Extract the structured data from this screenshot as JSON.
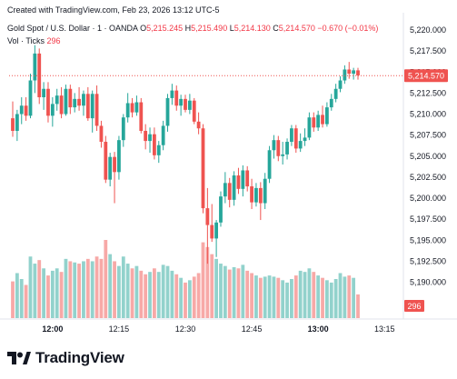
{
  "header": {
    "created": "Created with TradingView.com, Feb 23, 2026 13:12 UTC-5",
    "symbol": "Gold Spot / U.S. Dollar · 1 · OANDA",
    "o_label": "O",
    "o_value": "5,215.245",
    "h_label": "H",
    "h_value": "5,215.490",
    "l_label": "L",
    "l_value": "5,214.130",
    "c_label": "C",
    "c_value": "5,214.570",
    "change": "−0.670 (−0.01%)",
    "vol_label": "Vol · Ticks",
    "vol_value": "296"
  },
  "footer": {
    "logo_text": "TradingView"
  },
  "colors": {
    "up": "#26a69a",
    "down": "#ef5350",
    "vol_up": "#92d2cc",
    "vol_down": "#f7a9a7",
    "price_line": "#ef5350"
  },
  "chart_data": {
    "type": "candlestick",
    "y_ticks": [
      "5,220.000",
      "5,217.500",
      "5,215.000",
      "5,212.500",
      "5,210.000",
      "5,207.500",
      "5,205.000",
      "5,202.500",
      "5,200.000",
      "5,197.500",
      "5,195.000",
      "5,192.500",
      "5,190.000"
    ],
    "x_ticks": [
      {
        "label": "12:00",
        "index": 9,
        "bold": true
      },
      {
        "label": "12:15",
        "index": 24,
        "bold": false
      },
      {
        "label": "12:30",
        "index": 39,
        "bold": false
      },
      {
        "label": "12:45",
        "index": 54,
        "bold": false
      },
      {
        "label": "13:00",
        "index": 69,
        "bold": true
      },
      {
        "label": "13:15",
        "index": 84,
        "bold": false
      }
    ],
    "y_range": [
      5188.0,
      5222.0
    ],
    "last_price": "5,214.570",
    "last_price_value": 5214.57,
    "last_volume": "296",
    "candles": [
      {
        "o": 5209.5,
        "h": 5211.5,
        "l": 5207.3,
        "c": 5208.0,
        "v": 155
      },
      {
        "o": 5208.0,
        "h": 5210.5,
        "l": 5206.8,
        "c": 5210.0,
        "v": 190
      },
      {
        "o": 5210.0,
        "h": 5212.0,
        "l": 5208.8,
        "c": 5211.0,
        "v": 165
      },
      {
        "o": 5211.0,
        "h": 5212.0,
        "l": 5209.2,
        "c": 5209.8,
        "v": 140
      },
      {
        "o": 5209.8,
        "h": 5214.8,
        "l": 5209.5,
        "c": 5214.0,
        "v": 260
      },
      {
        "o": 5214.0,
        "h": 5218.2,
        "l": 5212.5,
        "c": 5217.2,
        "v": 230
      },
      {
        "o": 5217.2,
        "h": 5217.8,
        "l": 5211.2,
        "c": 5212.0,
        "v": 245
      },
      {
        "o": 5212.0,
        "h": 5213.8,
        "l": 5210.5,
        "c": 5213.0,
        "v": 210
      },
      {
        "o": 5213.0,
        "h": 5213.8,
        "l": 5209.0,
        "c": 5209.8,
        "v": 180
      },
      {
        "o": 5209.8,
        "h": 5212.0,
        "l": 5208.5,
        "c": 5211.2,
        "v": 200
      },
      {
        "o": 5211.2,
        "h": 5213.0,
        "l": 5210.4,
        "c": 5212.2,
        "v": 210
      },
      {
        "o": 5212.2,
        "h": 5213.2,
        "l": 5209.5,
        "c": 5210.0,
        "v": 195
      },
      {
        "o": 5210.0,
        "h": 5213.5,
        "l": 5209.8,
        "c": 5213.0,
        "v": 250
      },
      {
        "o": 5213.0,
        "h": 5213.5,
        "l": 5210.0,
        "c": 5210.8,
        "v": 240
      },
      {
        "o": 5210.8,
        "h": 5212.5,
        "l": 5210.2,
        "c": 5211.8,
        "v": 235
      },
      {
        "o": 5211.8,
        "h": 5213.2,
        "l": 5210.4,
        "c": 5211.0,
        "v": 230
      },
      {
        "o": 5211.0,
        "h": 5212.8,
        "l": 5209.8,
        "c": 5212.4,
        "v": 240
      },
      {
        "o": 5212.4,
        "h": 5213.2,
        "l": 5209.2,
        "c": 5209.5,
        "v": 250
      },
      {
        "o": 5209.5,
        "h": 5212.8,
        "l": 5207.8,
        "c": 5212.4,
        "v": 240
      },
      {
        "o": 5212.4,
        "h": 5213.4,
        "l": 5208.0,
        "c": 5208.6,
        "v": 260
      },
      {
        "o": 5208.6,
        "h": 5209.2,
        "l": 5206.0,
        "c": 5206.7,
        "v": 250
      },
      {
        "o": 5206.7,
        "h": 5207.4,
        "l": 5201.8,
        "c": 5202.2,
        "v": 330
      },
      {
        "o": 5202.2,
        "h": 5205.4,
        "l": 5201.4,
        "c": 5204.9,
        "v": 270
      },
      {
        "o": 5204.9,
        "h": 5205.5,
        "l": 5199.4,
        "c": 5203.1,
        "v": 240
      },
      {
        "o": 5203.1,
        "h": 5207.4,
        "l": 5202.2,
        "c": 5206.9,
        "v": 220
      },
      {
        "o": 5206.9,
        "h": 5210.0,
        "l": 5206.1,
        "c": 5209.6,
        "v": 260
      },
      {
        "o": 5209.6,
        "h": 5212.5,
        "l": 5209.0,
        "c": 5211.3,
        "v": 230
      },
      {
        "o": 5211.3,
        "h": 5211.9,
        "l": 5209.6,
        "c": 5210.2,
        "v": 210
      },
      {
        "o": 5210.2,
        "h": 5212.2,
        "l": 5209.8,
        "c": 5211.4,
        "v": 220
      },
      {
        "o": 5211.4,
        "h": 5211.9,
        "l": 5207.7,
        "c": 5208.0,
        "v": 200
      },
      {
        "o": 5208.0,
        "h": 5208.8,
        "l": 5205.8,
        "c": 5206.8,
        "v": 185
      },
      {
        "o": 5206.8,
        "h": 5208.4,
        "l": 5205.4,
        "c": 5207.6,
        "v": 195
      },
      {
        "o": 5207.6,
        "h": 5208.4,
        "l": 5204.6,
        "c": 5205.1,
        "v": 210
      },
      {
        "o": 5205.1,
        "h": 5206.8,
        "l": 5204.2,
        "c": 5206.3,
        "v": 195
      },
      {
        "o": 5206.3,
        "h": 5209.2,
        "l": 5205.7,
        "c": 5208.6,
        "v": 225
      },
      {
        "o": 5208.6,
        "h": 5212.4,
        "l": 5207.9,
        "c": 5211.9,
        "v": 220
      },
      {
        "o": 5211.9,
        "h": 5213.6,
        "l": 5211.1,
        "c": 5212.8,
        "v": 200
      },
      {
        "o": 5212.8,
        "h": 5213.4,
        "l": 5210.4,
        "c": 5211.0,
        "v": 185
      },
      {
        "o": 5211.0,
        "h": 5212.3,
        "l": 5209.8,
        "c": 5211.8,
        "v": 170
      },
      {
        "o": 5211.8,
        "h": 5212.3,
        "l": 5210.2,
        "c": 5210.5,
        "v": 150
      },
      {
        "o": 5210.5,
        "h": 5212.4,
        "l": 5210.0,
        "c": 5211.6,
        "v": 160
      },
      {
        "o": 5211.6,
        "h": 5211.9,
        "l": 5208.8,
        "c": 5209.1,
        "v": 175
      },
      {
        "o": 5209.1,
        "h": 5210.2,
        "l": 5207.6,
        "c": 5208.3,
        "v": 190
      },
      {
        "o": 5208.3,
        "h": 5208.8,
        "l": 5198.2,
        "c": 5198.8,
        "v": 320
      },
      {
        "o": 5198.8,
        "h": 5201.2,
        "l": 5192.2,
        "c": 5196.8,
        "v": 300
      },
      {
        "o": 5196.8,
        "h": 5199.3,
        "l": 5194.8,
        "c": 5195.2,
        "v": 270
      },
      {
        "o": 5195.2,
        "h": 5197.4,
        "l": 5193.0,
        "c": 5197.1,
        "v": 250
      },
      {
        "o": 5197.1,
        "h": 5200.8,
        "l": 5196.6,
        "c": 5200.2,
        "v": 230
      },
      {
        "o": 5200.2,
        "h": 5203.1,
        "l": 5199.4,
        "c": 5201.8,
        "v": 220
      },
      {
        "o": 5201.8,
        "h": 5202.4,
        "l": 5198.9,
        "c": 5199.8,
        "v": 205
      },
      {
        "o": 5199.8,
        "h": 5203.2,
        "l": 5199.1,
        "c": 5202.7,
        "v": 215
      },
      {
        "o": 5202.7,
        "h": 5203.6,
        "l": 5200.5,
        "c": 5201.1,
        "v": 210
      },
      {
        "o": 5201.1,
        "h": 5203.9,
        "l": 5200.2,
        "c": 5203.3,
        "v": 225
      },
      {
        "o": 5203.3,
        "h": 5203.8,
        "l": 5200.8,
        "c": 5201.4,
        "v": 200
      },
      {
        "o": 5201.4,
        "h": 5202.3,
        "l": 5198.7,
        "c": 5199.5,
        "v": 190
      },
      {
        "o": 5199.5,
        "h": 5201.8,
        "l": 5199.0,
        "c": 5201.2,
        "v": 180
      },
      {
        "o": 5201.2,
        "h": 5201.9,
        "l": 5197.4,
        "c": 5199.4,
        "v": 170
      },
      {
        "o": 5199.4,
        "h": 5203.0,
        "l": 5198.7,
        "c": 5202.3,
        "v": 175
      },
      {
        "o": 5202.3,
        "h": 5206.2,
        "l": 5201.8,
        "c": 5205.7,
        "v": 180
      },
      {
        "o": 5205.7,
        "h": 5207.5,
        "l": 5204.7,
        "c": 5206.9,
        "v": 175
      },
      {
        "o": 5206.9,
        "h": 5207.4,
        "l": 5204.4,
        "c": 5205.0,
        "v": 170
      },
      {
        "o": 5205.0,
        "h": 5206.7,
        "l": 5204.0,
        "c": 5205.2,
        "v": 160
      },
      {
        "o": 5205.2,
        "h": 5207.1,
        "l": 5204.6,
        "c": 5206.7,
        "v": 150
      },
      {
        "o": 5206.7,
        "h": 5208.7,
        "l": 5206.2,
        "c": 5208.3,
        "v": 165
      },
      {
        "o": 5208.3,
        "h": 5208.7,
        "l": 5205.4,
        "c": 5205.9,
        "v": 180
      },
      {
        "o": 5205.9,
        "h": 5207.7,
        "l": 5205.5,
        "c": 5206.8,
        "v": 200
      },
      {
        "o": 5206.8,
        "h": 5208.3,
        "l": 5206.2,
        "c": 5207.2,
        "v": 195
      },
      {
        "o": 5207.2,
        "h": 5210.2,
        "l": 5206.9,
        "c": 5209.6,
        "v": 210
      },
      {
        "o": 5209.6,
        "h": 5210.2,
        "l": 5207.9,
        "c": 5208.4,
        "v": 195
      },
      {
        "o": 5208.4,
        "h": 5210.4,
        "l": 5208.0,
        "c": 5209.9,
        "v": 180
      },
      {
        "o": 5209.9,
        "h": 5211.0,
        "l": 5208.4,
        "c": 5208.8,
        "v": 170
      },
      {
        "o": 5208.8,
        "h": 5211.4,
        "l": 5208.5,
        "c": 5210.8,
        "v": 160
      },
      {
        "o": 5210.8,
        "h": 5212.4,
        "l": 5210.4,
        "c": 5211.8,
        "v": 150
      },
      {
        "o": 5211.8,
        "h": 5213.6,
        "l": 5211.4,
        "c": 5213.0,
        "v": 165
      },
      {
        "o": 5213.0,
        "h": 5214.5,
        "l": 5212.6,
        "c": 5214.0,
        "v": 190
      },
      {
        "o": 5214.0,
        "h": 5215.8,
        "l": 5213.6,
        "c": 5215.3,
        "v": 175
      },
      {
        "o": 5215.3,
        "h": 5216.2,
        "l": 5214.2,
        "c": 5214.8,
        "v": 180
      },
      {
        "o": 5214.8,
        "h": 5215.5,
        "l": 5214.1,
        "c": 5215.2,
        "v": 170
      },
      {
        "o": 5215.2,
        "h": 5215.5,
        "l": 5214.1,
        "c": 5214.6,
        "v": 100
      }
    ]
  }
}
